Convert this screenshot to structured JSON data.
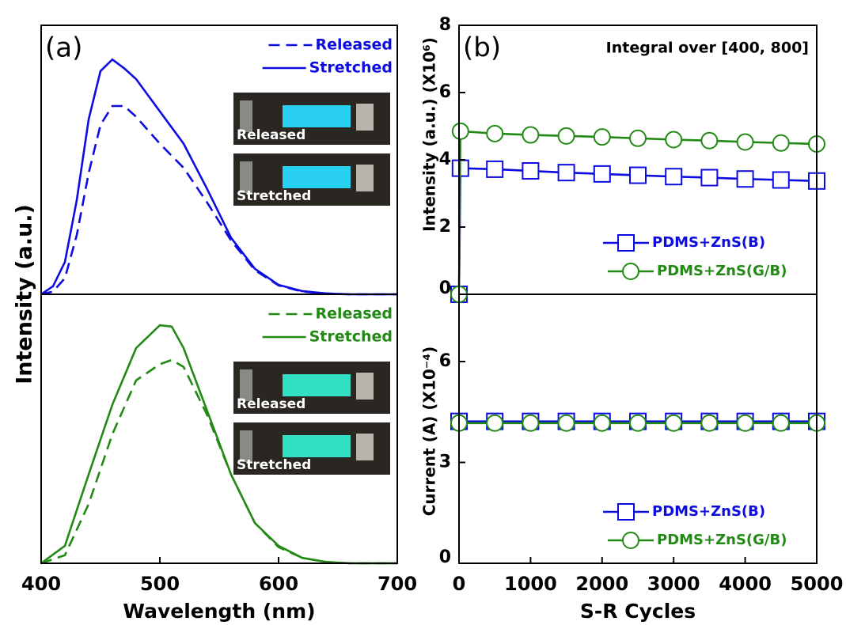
{
  "chart_data": [
    {
      "type": "line",
      "annotation": "(a)",
      "ylabel": "Intensity (a.u.)",
      "xlim": [
        400,
        700
      ],
      "ylim": [
        0,
        1
      ],
      "legend": "upper right",
      "insets": [
        "Released",
        "Stretched"
      ],
      "inset_color": "#2ad0f0",
      "x": [
        400,
        410,
        420,
        430,
        440,
        450,
        460,
        470,
        480,
        500,
        520,
        540,
        560,
        580,
        600,
        620,
        640,
        660,
        680,
        700
      ],
      "series": [
        {
          "name": "Released",
          "color": "#0c0ce0",
          "linestyle": "dashed",
          "values": [
            0,
            0.01,
            0.06,
            0.22,
            0.45,
            0.63,
            0.7,
            0.7,
            0.66,
            0.56,
            0.47,
            0.34,
            0.2,
            0.09,
            0.033,
            0.01,
            0.003,
            0,
            0,
            0
          ]
        },
        {
          "name": "Stretched",
          "color": "#0c0ce0",
          "linestyle": "solid",
          "values": [
            0,
            0.03,
            0.12,
            0.35,
            0.65,
            0.83,
            0.873,
            0.84,
            0.8,
            0.68,
            0.56,
            0.39,
            0.21,
            0.095,
            0.035,
            0.012,
            0.003,
            0,
            0,
            0
          ]
        }
      ]
    },
    {
      "type": "line",
      "xlabel": "Wavelength (nm)",
      "xlim": [
        400,
        700
      ],
      "xticks": [
        400,
        500,
        600,
        700
      ],
      "ylim": [
        0,
        1
      ],
      "legend": "upper right",
      "insets": [
        "Released",
        "Stretched"
      ],
      "inset_color": "#34e0c4",
      "x": [
        400,
        420,
        440,
        460,
        480,
        500,
        510,
        520,
        540,
        560,
        580,
        600,
        620,
        640,
        660,
        680,
        700
      ],
      "series": [
        {
          "name": "Released",
          "color": "#228a14",
          "linestyle": "dashed",
          "values": [
            0,
            0.03,
            0.22,
            0.48,
            0.68,
            0.74,
            0.756,
            0.73,
            0.55,
            0.33,
            0.15,
            0.06,
            0.02,
            0.005,
            0,
            0,
            0
          ]
        },
        {
          "name": "Stretched",
          "color": "#228a14",
          "linestyle": "solid",
          "values": [
            0,
            0.065,
            0.33,
            0.59,
            0.8,
            0.885,
            0.88,
            0.8,
            0.565,
            0.33,
            0.15,
            0.065,
            0.02,
            0.005,
            0,
            0,
            0
          ]
        }
      ]
    },
    {
      "type": "line",
      "annotation": "(b)",
      "note": "Integral over [400, 800]",
      "ylabel": "Intensity (a.u.) (X10⁶)",
      "xlim": [
        0,
        5000
      ],
      "ylim": [
        0,
        8
      ],
      "yticks": [
        0,
        2,
        4,
        6,
        8
      ],
      "legend": "lower right",
      "x": [
        0,
        20,
        500,
        1000,
        1500,
        2000,
        2500,
        3000,
        3500,
        4000,
        4500,
        5000
      ],
      "series": [
        {
          "name": "PDMS+ZnS(B)",
          "color": "#0c0ce0",
          "marker": "square",
          "values": [
            0,
            3.75,
            3.72,
            3.67,
            3.62,
            3.58,
            3.54,
            3.5,
            3.47,
            3.43,
            3.4,
            3.37
          ]
        },
        {
          "name": "PDMS+ZnS(G/B)",
          "color": "#228a14",
          "marker": "circle",
          "values": [
            0,
            4.85,
            4.78,
            4.74,
            4.71,
            4.68,
            4.64,
            4.6,
            4.57,
            4.53,
            4.5,
            4.47
          ]
        }
      ]
    },
    {
      "type": "line",
      "xlabel": "S-R Cycles",
      "ylabel": "Current (A) (X10⁻⁴)",
      "xlim": [
        0,
        5000
      ],
      "xticks": [
        0,
        1000,
        2000,
        3000,
        4000,
        5000
      ],
      "ylim": [
        0,
        8
      ],
      "yticks": [
        0,
        3,
        6
      ],
      "legend": "lower right",
      "x": [
        0,
        500,
        1000,
        1500,
        2000,
        2500,
        3000,
        3500,
        4000,
        4500,
        5000
      ],
      "series": [
        {
          "name": "PDMS+ZnS(B)",
          "color": "#0c0ce0",
          "marker": "square",
          "values": [
            4.22,
            4.22,
            4.22,
            4.22,
            4.22,
            4.22,
            4.22,
            4.22,
            4.22,
            4.22,
            4.22
          ]
        },
        {
          "name": "PDMS+ZnS(G/B)",
          "color": "#228a14",
          "marker": "circle",
          "values": [
            4.17,
            4.17,
            4.17,
            4.17,
            4.17,
            4.17,
            4.17,
            4.17,
            4.17,
            4.17,
            4.17
          ]
        }
      ]
    }
  ]
}
